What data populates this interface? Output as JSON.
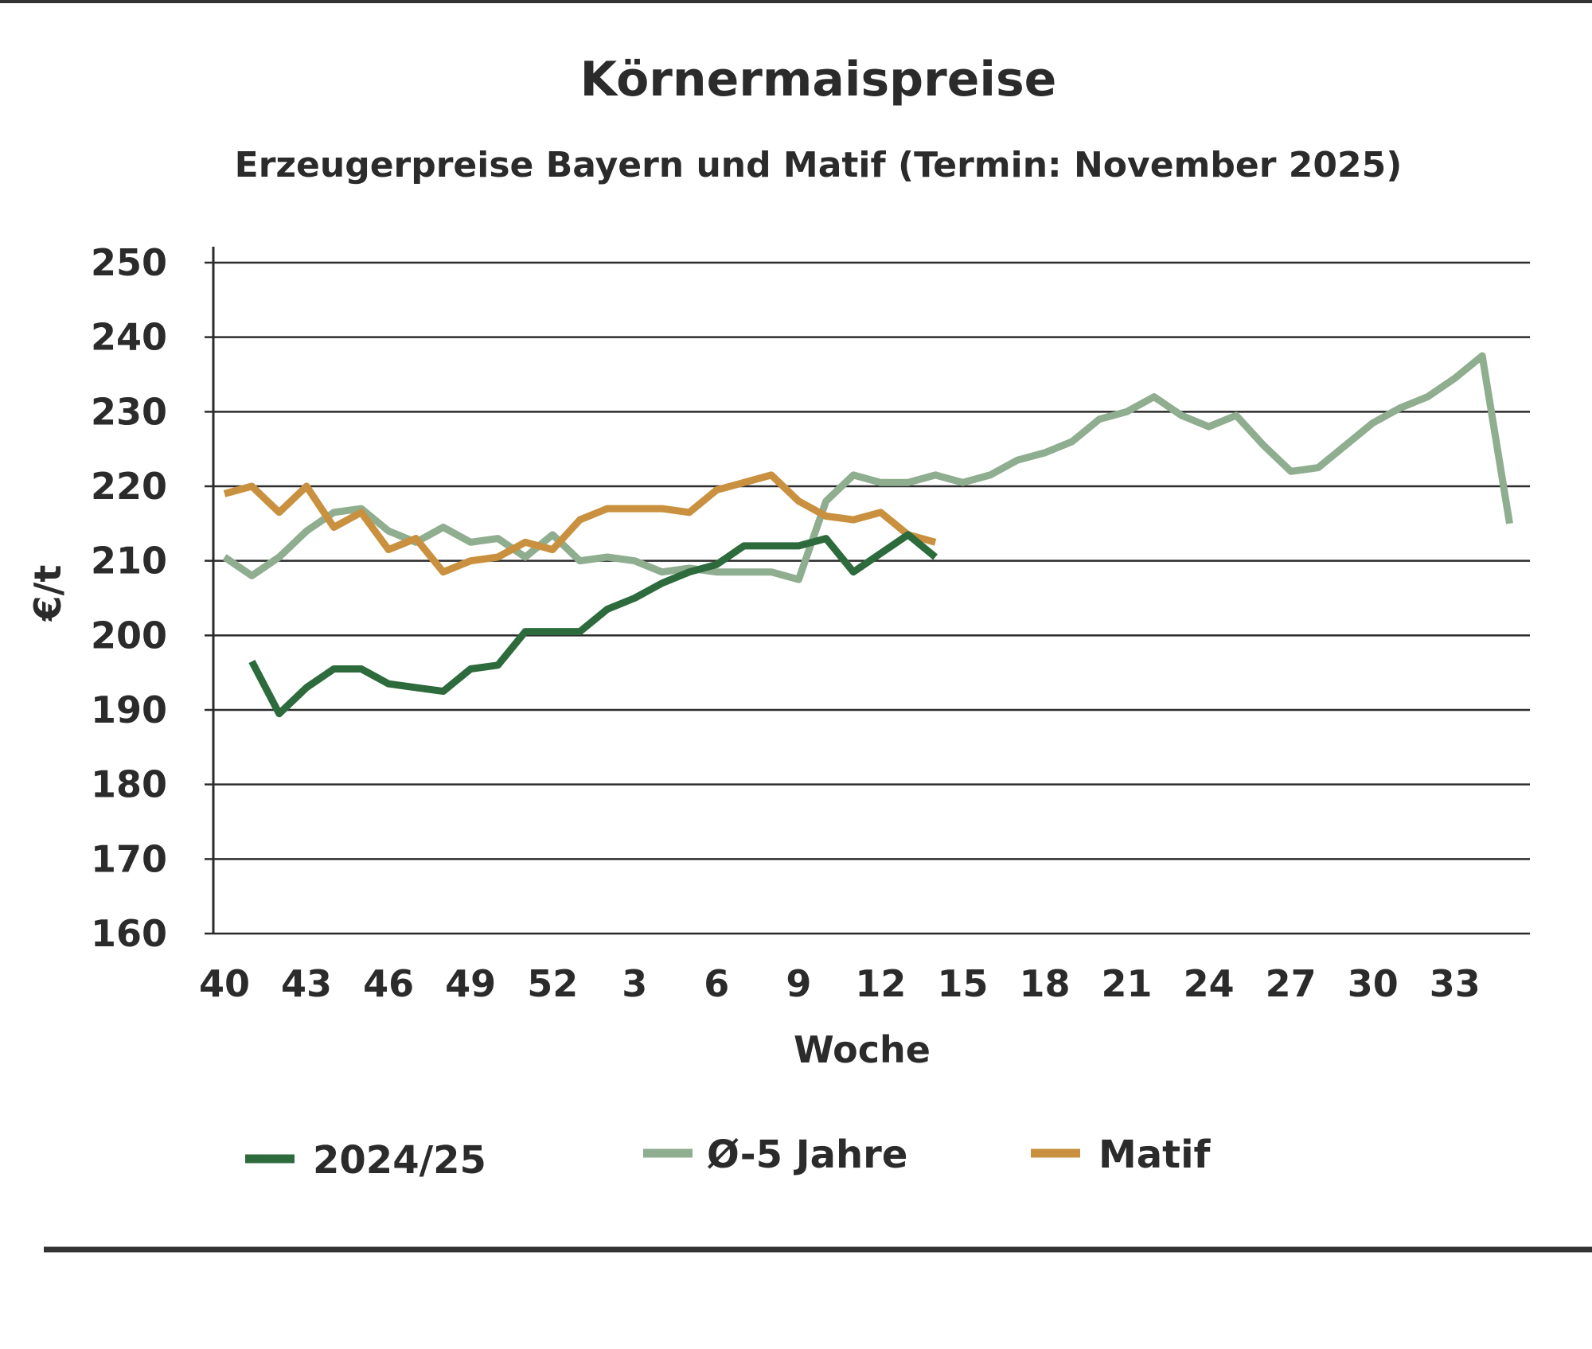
{
  "chart_data": {
    "type": "line",
    "title": "Körnermaispreise",
    "subtitle": "Erzeugerpreise Bayern und Matif (Termin: November 2025)",
    "xlabel": "Woche",
    "ylabel": "€/t",
    "ylim": [
      160,
      250
    ],
    "yticks": [
      160,
      170,
      180,
      190,
      200,
      210,
      220,
      230,
      240,
      250
    ],
    "grid": true,
    "legend": "bottom",
    "x": [
      40,
      41,
      42,
      43,
      44,
      45,
      46,
      47,
      48,
      49,
      50,
      51,
      52,
      1,
      2,
      3,
      4,
      5,
      6,
      7,
      8,
      9,
      10,
      11,
      12,
      13,
      14,
      15,
      16,
      17,
      18,
      19,
      20,
      21,
      22,
      23,
      24,
      25,
      26,
      27,
      28,
      29,
      30,
      31,
      32,
      33,
      34,
      35
    ],
    "xticklabels": [
      "40",
      "43",
      "46",
      "49",
      "52",
      "3",
      "6",
      "9",
      "12",
      "15",
      "18",
      "21",
      "24",
      "27",
      "30",
      "33"
    ],
    "series": [
      {
        "name": "2024/25",
        "color": "#2d6b3c",
        "values": [
          null,
          196.5,
          189.5,
          193,
          195.5,
          195.5,
          193.5,
          193,
          192.5,
          195.5,
          196,
          200.5,
          200.5,
          200.5,
          203.5,
          205,
          207,
          208.5,
          209.5,
          212,
          212,
          212,
          213,
          208.5,
          211,
          213.5,
          210.5,
          null,
          null,
          null,
          null,
          null,
          null,
          null,
          null,
          null,
          null,
          null,
          null,
          null,
          null,
          null,
          null,
          null,
          null,
          null,
          null,
          null
        ]
      },
      {
        "name": "Ø-5 Jahre",
        "color": "#8fad8f",
        "values": [
          210.5,
          208,
          210.5,
          214,
          216.5,
          217,
          214,
          212.5,
          214.5,
          212.5,
          213,
          210.5,
          213.5,
          210,
          210.5,
          210,
          208.5,
          209,
          208.5,
          208.5,
          208.5,
          207.5,
          218,
          221.5,
          220.5,
          220.5,
          221.5,
          220.5,
          221.5,
          223.5,
          224.5,
          226,
          229,
          230,
          232,
          229.5,
          228,
          229.5,
          225.5,
          222,
          222.5,
          225.5,
          228.5,
          230.5,
          232,
          234.5,
          237.5,
          215
        ]
      },
      {
        "name": "Matif",
        "color": "#c9913f",
        "values": [
          219,
          220,
          216.5,
          220,
          214.5,
          216.5,
          211.5,
          213,
          208.5,
          210,
          210.5,
          212.5,
          211.5,
          215.5,
          217,
          217,
          217,
          216.5,
          219.5,
          220.5,
          221.5,
          218,
          216,
          215.5,
          216.5,
          213.5,
          212.5,
          null,
          null,
          null,
          null,
          null,
          null,
          null,
          null,
          null,
          null,
          null,
          null,
          null,
          null,
          null,
          null,
          null,
          null,
          null,
          null,
          null
        ]
      }
    ]
  }
}
